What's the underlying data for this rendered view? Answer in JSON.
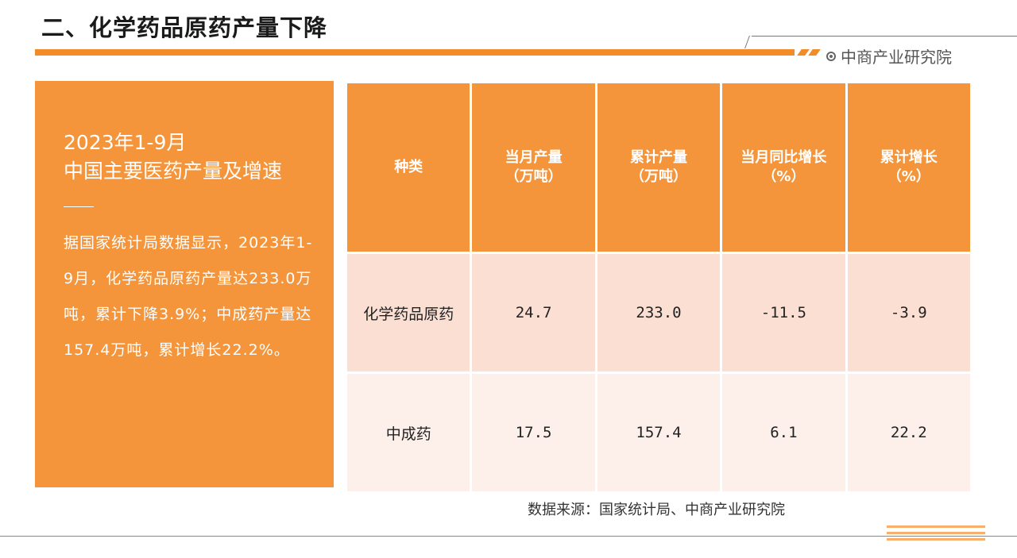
{
  "header": {
    "title": "二、化学药品原药产量下降",
    "brand": "中商产业研究院"
  },
  "left_panel": {
    "title_line1": "2023年1-9月",
    "title_line2": "中国主要医药产量及增速",
    "body": "据国家统计局数据显示，2023年1-9月，化学药品原药产量达233.0万吨，累计下降3.9%；中成药产量达157.4万吨，累计增长22.2%。"
  },
  "table": {
    "headers": [
      {
        "line1": "种类",
        "line2": ""
      },
      {
        "line1": "当月产量",
        "line2": "（万吨）"
      },
      {
        "line1": "累计产量",
        "line2": "（万吨）"
      },
      {
        "line1": "当月同比增长",
        "line2": "（%）"
      },
      {
        "line1": "累计增长",
        "line2": "（%）"
      }
    ],
    "rows": [
      [
        "化学药品原药",
        "24.7",
        "233.0",
        "-11.5",
        "-3.9"
      ],
      [
        "中成药",
        "17.5",
        "157.4",
        "6.1",
        "22.2"
      ]
    ]
  },
  "source": "数据来源：国家统计局、中商产业研究院",
  "colors": {
    "accent": "#f4953b",
    "row1_bg": "#fadfd2",
    "row2_bg": "#fdf0ea"
  }
}
